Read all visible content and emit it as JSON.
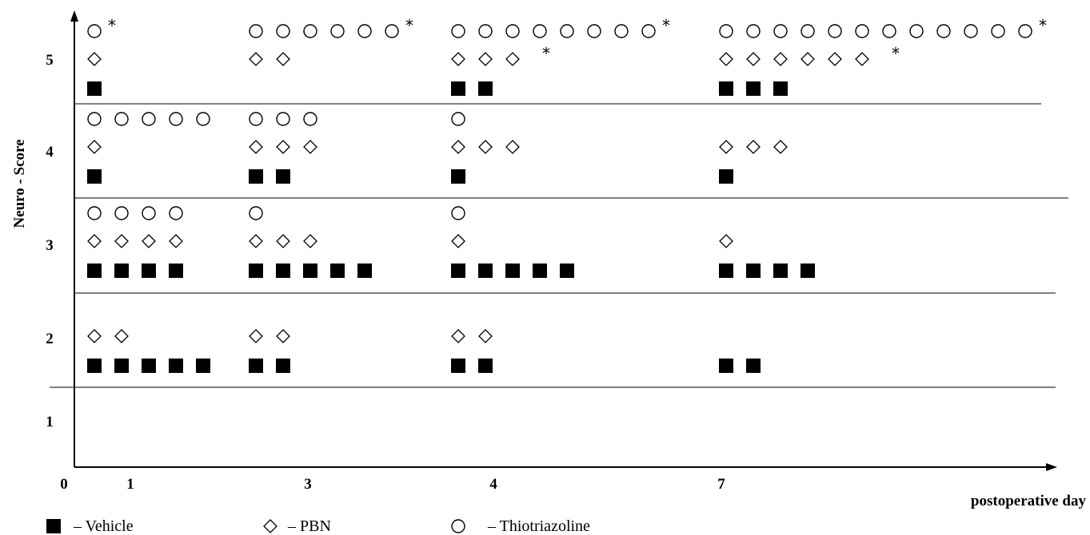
{
  "chart_data": {
    "type": "scatter",
    "ylabel": "Neuro - Score",
    "xlabel": "postoperative day",
    "origin_label": "0",
    "categories": [
      "1",
      "3",
      "4",
      "7"
    ],
    "y_ticks": [
      "1",
      "2",
      "3",
      "4",
      "5"
    ],
    "series": [
      {
        "name": "Vehicle",
        "marker": "square",
        "color": "#000000",
        "counts": {
          "1": {
            "5": 1,
            "4": 1,
            "3": 4,
            "2": 5
          },
          "3": {
            "5": 0,
            "4": 2,
            "3": 5,
            "2": 2
          },
          "4": {
            "5": 2,
            "4": 1,
            "3": 5,
            "2": 2
          },
          "7": {
            "5": 3,
            "4": 1,
            "3": 4,
            "2": 2
          }
        }
      },
      {
        "name": "PBN",
        "marker": "diamond",
        "color": "#000000",
        "counts": {
          "1": {
            "5": 1,
            "4": 1,
            "3": 4,
            "2": 2
          },
          "3": {
            "5": 2,
            "4": 3,
            "3": 3,
            "2": 2
          },
          "4": {
            "5": 3,
            "4": 3,
            "3": 1,
            "2": 2
          },
          "7": {
            "5": 6,
            "4": 3,
            "3": 1,
            "2": 0
          }
        }
      },
      {
        "name": "Thiotriazoline",
        "marker": "circle",
        "color": "#000000",
        "counts": {
          "1": {
            "5": 1,
            "4": 5,
            "3": 4,
            "2": 0
          },
          "3": {
            "5": 6,
            "4": 3,
            "3": 1,
            "2": 0
          },
          "4": {
            "5": 8,
            "4": 1,
            "3": 1,
            "2": 0
          },
          "7": {
            "5": 12,
            "4": 0,
            "3": 0,
            "2": 0
          }
        }
      }
    ],
    "significance_marks": [
      {
        "series": "Thiotriazoline",
        "day": "1",
        "score": "5",
        "symbol": "*"
      },
      {
        "series": "Thiotriazoline",
        "day": "3",
        "score": "5",
        "symbol": "*"
      },
      {
        "series": "Thiotriazoline",
        "day": "4",
        "score": "5",
        "symbol": "*"
      },
      {
        "series": "Thiotriazoline",
        "day": "7",
        "score": "5",
        "symbol": "*"
      },
      {
        "series": "PBN",
        "day": "4",
        "score": "5",
        "symbol": "*"
      },
      {
        "series": "PBN",
        "day": "7",
        "score": "5",
        "symbol": "*"
      }
    ],
    "legend": [
      {
        "marker": "square",
        "label": "– Vehicle"
      },
      {
        "marker": "diamond",
        "label": "– PBN"
      },
      {
        "marker": "circle",
        "label": "– Thiotriazoline"
      }
    ],
    "grid": "horizontal band separators"
  }
}
